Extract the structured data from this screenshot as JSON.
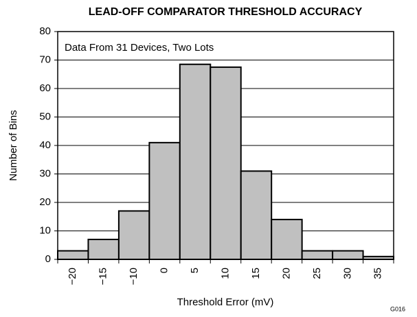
{
  "chart_data": {
    "type": "bar",
    "title": "LEAD-OFF COMPARATOR THRESHOLD ACCURACY",
    "x_label": "Threshold Error (mV)",
    "y_label": "Number of Bins",
    "annotation": "Data From 31 Devices, Two Lots",
    "footnote": "G016",
    "categories": [
      "−20",
      "−15",
      "−10",
      "0",
      "5",
      "10",
      "15",
      "20",
      "25",
      "30",
      "35"
    ],
    "values": [
      3,
      7,
      17,
      41,
      68.5,
      67.5,
      31,
      14,
      3,
      3,
      1
    ],
    "color": "#c0c0c0",
    "ylim": [
      0,
      80
    ],
    "yticks": [
      0,
      10,
      20,
      30,
      40,
      50,
      60,
      70,
      80
    ],
    "grid": true
  }
}
